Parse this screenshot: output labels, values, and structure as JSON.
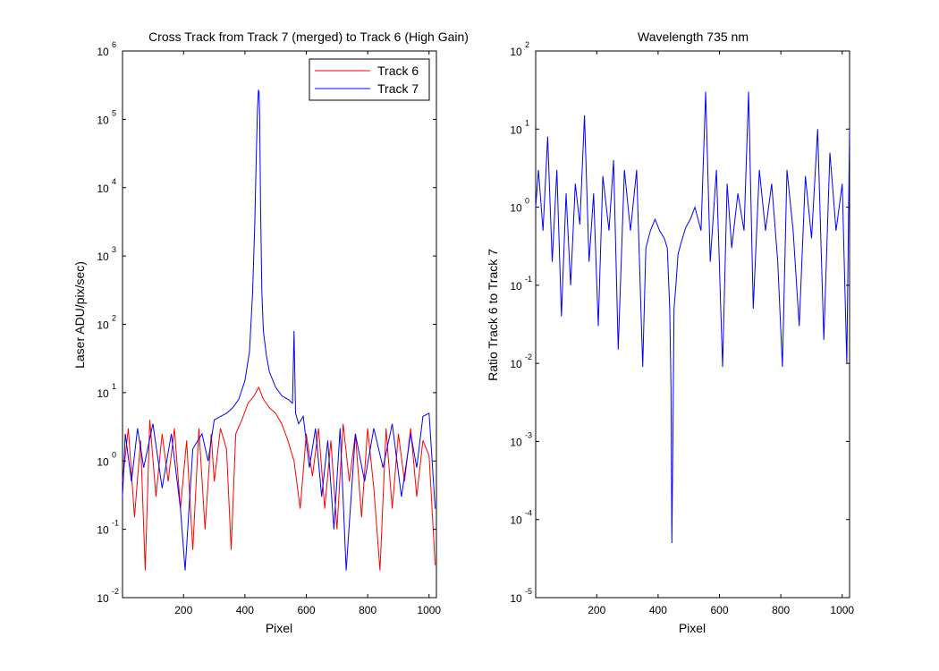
{
  "chart_data": [
    {
      "type": "line",
      "title": "Cross Track from Track 7 (merged) to Track 6 (High Gain)",
      "xlabel": "Pixel",
      "ylabel": "Laser ADU/pix/sec)",
      "xlim": [
        1,
        1024
      ],
      "ylim": [
        0.01,
        1000000
      ],
      "yscale": "log",
      "grid": false,
      "legend_position": "top-right",
      "x_ticks": [
        {
          "value": 200,
          "label": "200"
        },
        {
          "value": 400,
          "label": "400"
        },
        {
          "value": 600,
          "label": "600"
        },
        {
          "value": 800,
          "label": "800"
        },
        {
          "value": 1000,
          "label": "1000"
        }
      ],
      "y_ticks": [
        {
          "value": 0.01,
          "base": "10",
          "exp": "-2"
        },
        {
          "value": 0.1,
          "base": "10",
          "exp": "-1"
        },
        {
          "value": 1,
          "base": "10",
          "exp": "0"
        },
        {
          "value": 10,
          "base": "10",
          "exp": "1"
        },
        {
          "value": 100,
          "base": "10",
          "exp": "2"
        },
        {
          "value": 1000,
          "base": "10",
          "exp": "3"
        },
        {
          "value": 10000,
          "base": "10",
          "exp": "4"
        },
        {
          "value": 100000,
          "base": "10",
          "exp": "5"
        },
        {
          "value": 1000000,
          "base": "10",
          "exp": "6"
        }
      ],
      "series": [
        {
          "name": "Track 6",
          "color": "#ff0000",
          "x": [
            1,
            20,
            40,
            60,
            75,
            90,
            110,
            130,
            150,
            170,
            190,
            210,
            230,
            250,
            270,
            290,
            300,
            320,
            340,
            355,
            370,
            390,
            410,
            430,
            445,
            460,
            480,
            500,
            520,
            540,
            560,
            580,
            600,
            620,
            640,
            660,
            680,
            700,
            720,
            740,
            760,
            780,
            800,
            820,
            840,
            860,
            880,
            900,
            920,
            940,
            960,
            980,
            1000,
            1020
          ],
          "y": [
            0.5,
            3.0,
            0.15,
            2.0,
            0.025,
            4.0,
            0.3,
            2.5,
            0.5,
            3.0,
            0.2,
            2.0,
            0.05,
            3.0,
            0.1,
            2.5,
            0.5,
            3.0,
            1.5,
            0.05,
            2.5,
            4.0,
            7.0,
            9.0,
            12.0,
            8.0,
            6.0,
            5.0,
            3.5,
            2.0,
            1.0,
            0.2,
            2.5,
            0.6,
            3.0,
            0.2,
            2.0,
            0.1,
            3.5,
            0.5,
            2.5,
            0.15,
            3.0,
            0.4,
            0.025,
            3.0,
            0.2,
            2.5,
            0.5,
            3.0,
            0.3,
            2.0,
            1.2,
            0.03
          ]
        },
        {
          "name": "Track 7",
          "color": "#0000ff",
          "x": [
            1,
            10,
            30,
            50,
            70,
            100,
            130,
            160,
            190,
            205,
            230,
            260,
            280,
            300,
            320,
            340,
            360,
            380,
            400,
            415,
            425,
            432,
            437,
            441,
            444,
            446,
            448,
            451,
            455,
            460,
            470,
            480,
            500,
            520,
            540,
            555,
            560,
            565,
            575,
            590,
            610,
            630,
            650,
            670,
            690,
            710,
            730,
            760,
            790,
            820,
            850,
            880,
            910,
            940,
            960,
            980,
            1000,
            1020
          ],
          "y": [
            0.3,
            2.5,
            0.5,
            3.0,
            0.8,
            3.5,
            0.4,
            2.5,
            0.2,
            0.025,
            1.5,
            2.5,
            1.0,
            4.0,
            4.5,
            5.0,
            6.0,
            8.0,
            15.0,
            40.0,
            300.0,
            3000.0,
            30000.0,
            150000.0,
            270000.0,
            250000.0,
            100000.0,
            5000.0,
            300.0,
            80.0,
            35.0,
            20.0,
            12.0,
            9.0,
            8.0,
            7.0,
            80.0,
            5.0,
            3.5,
            4.5,
            0.8,
            3.0,
            0.3,
            2.0,
            0.1,
            3.0,
            0.025,
            2.5,
            0.5,
            3.0,
            0.8,
            3.5,
            0.3,
            2.5,
            0.8,
            4.5,
            5.0,
            0.2
          ]
        }
      ]
    },
    {
      "type": "line",
      "title": "Wavelength 735 nm",
      "xlabel": "Pixel",
      "ylabel": "Ratio Track 6 to Track 7",
      "xlim": [
        1,
        1024
      ],
      "ylim": [
        1e-05,
        100
      ],
      "yscale": "log",
      "grid": false,
      "x_ticks": [
        {
          "value": 200,
          "label": "200"
        },
        {
          "value": 400,
          "label": "400"
        },
        {
          "value": 600,
          "label": "600"
        },
        {
          "value": 800,
          "label": "800"
        },
        {
          "value": 1000,
          "label": "1000"
        }
      ],
      "y_ticks": [
        {
          "value": 1e-05,
          "base": "10",
          "exp": "-5"
        },
        {
          "value": 0.0001,
          "base": "10",
          "exp": "-4"
        },
        {
          "value": 0.001,
          "base": "10",
          "exp": "-3"
        },
        {
          "value": 0.01,
          "base": "10",
          "exp": "-2"
        },
        {
          "value": 0.1,
          "base": "10",
          "exp": "-1"
        },
        {
          "value": 1,
          "base": "10",
          "exp": "0"
        },
        {
          "value": 10,
          "base": "10",
          "exp": "1"
        },
        {
          "value": 100,
          "base": "10",
          "exp": "2"
        }
      ],
      "series": [
        {
          "color": "#0000ff",
          "x": [
            1,
            10,
            25,
            40,
            55,
            70,
            85,
            100,
            115,
            130,
            145,
            160,
            175,
            190,
            205,
            220,
            240,
            255,
            270,
            290,
            310,
            330,
            350,
            360,
            375,
            390,
            405,
            420,
            430,
            438,
            442,
            445,
            448,
            452,
            458,
            465,
            475,
            490,
            505,
            520,
            540,
            555,
            570,
            590,
            610,
            625,
            640,
            660,
            680,
            695,
            710,
            730,
            750,
            770,
            790,
            805,
            820,
            840,
            860,
            880,
            900,
            920,
            940,
            960,
            980,
            1000,
            1015,
            1024
          ],
          "y": [
            1.0,
            3.0,
            0.5,
            8.0,
            0.2,
            3.0,
            0.04,
            1.5,
            0.1,
            2.0,
            0.6,
            15.0,
            0.2,
            1.5,
            0.03,
            2.5,
            0.5,
            4.0,
            0.015,
            3.0,
            0.5,
            3.0,
            0.009,
            0.3,
            0.5,
            0.7,
            0.5,
            0.4,
            0.3,
            0.05,
            0.005,
            5e-05,
            0.001,
            0.05,
            0.1,
            0.25,
            0.35,
            0.55,
            0.7,
            1.0,
            0.5,
            30.0,
            0.2,
            3.0,
            0.009,
            2.0,
            0.3,
            1.5,
            0.5,
            30.0,
            0.05,
            3.0,
            0.5,
            2.0,
            0.2,
            0.009,
            3.0,
            0.5,
            0.03,
            2.5,
            0.4,
            10.0,
            0.02,
            5.0,
            0.5,
            2.0,
            0.01,
            10.0
          ]
        }
      ]
    }
  ]
}
